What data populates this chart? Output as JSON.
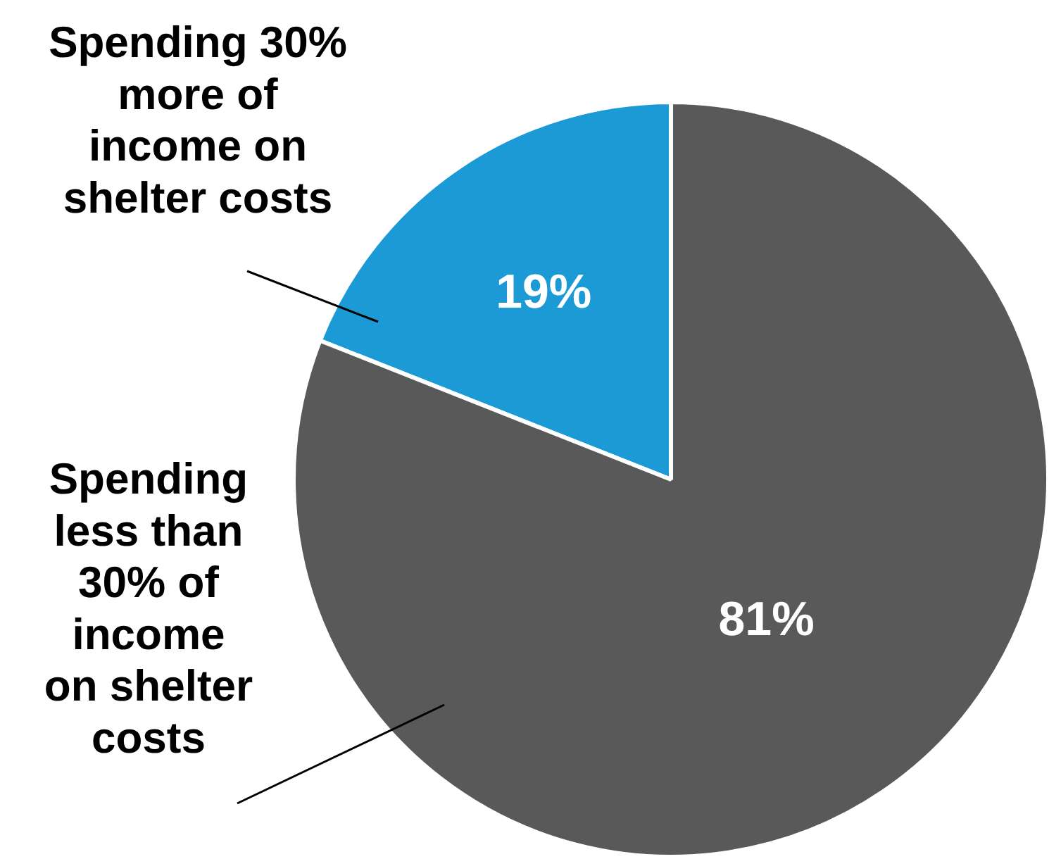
{
  "chart_data": {
    "type": "pie",
    "categories": [
      "Spending 30%\nmore of\nincome on\nshelter costs",
      "Spending\nless than\n30% of\nincome\non shelter\ncosts"
    ],
    "values": [
      19,
      81
    ],
    "colors": [
      "#1b9ad6",
      "#595959"
    ],
    "value_labels": [
      "19%",
      "81%"
    ]
  }
}
